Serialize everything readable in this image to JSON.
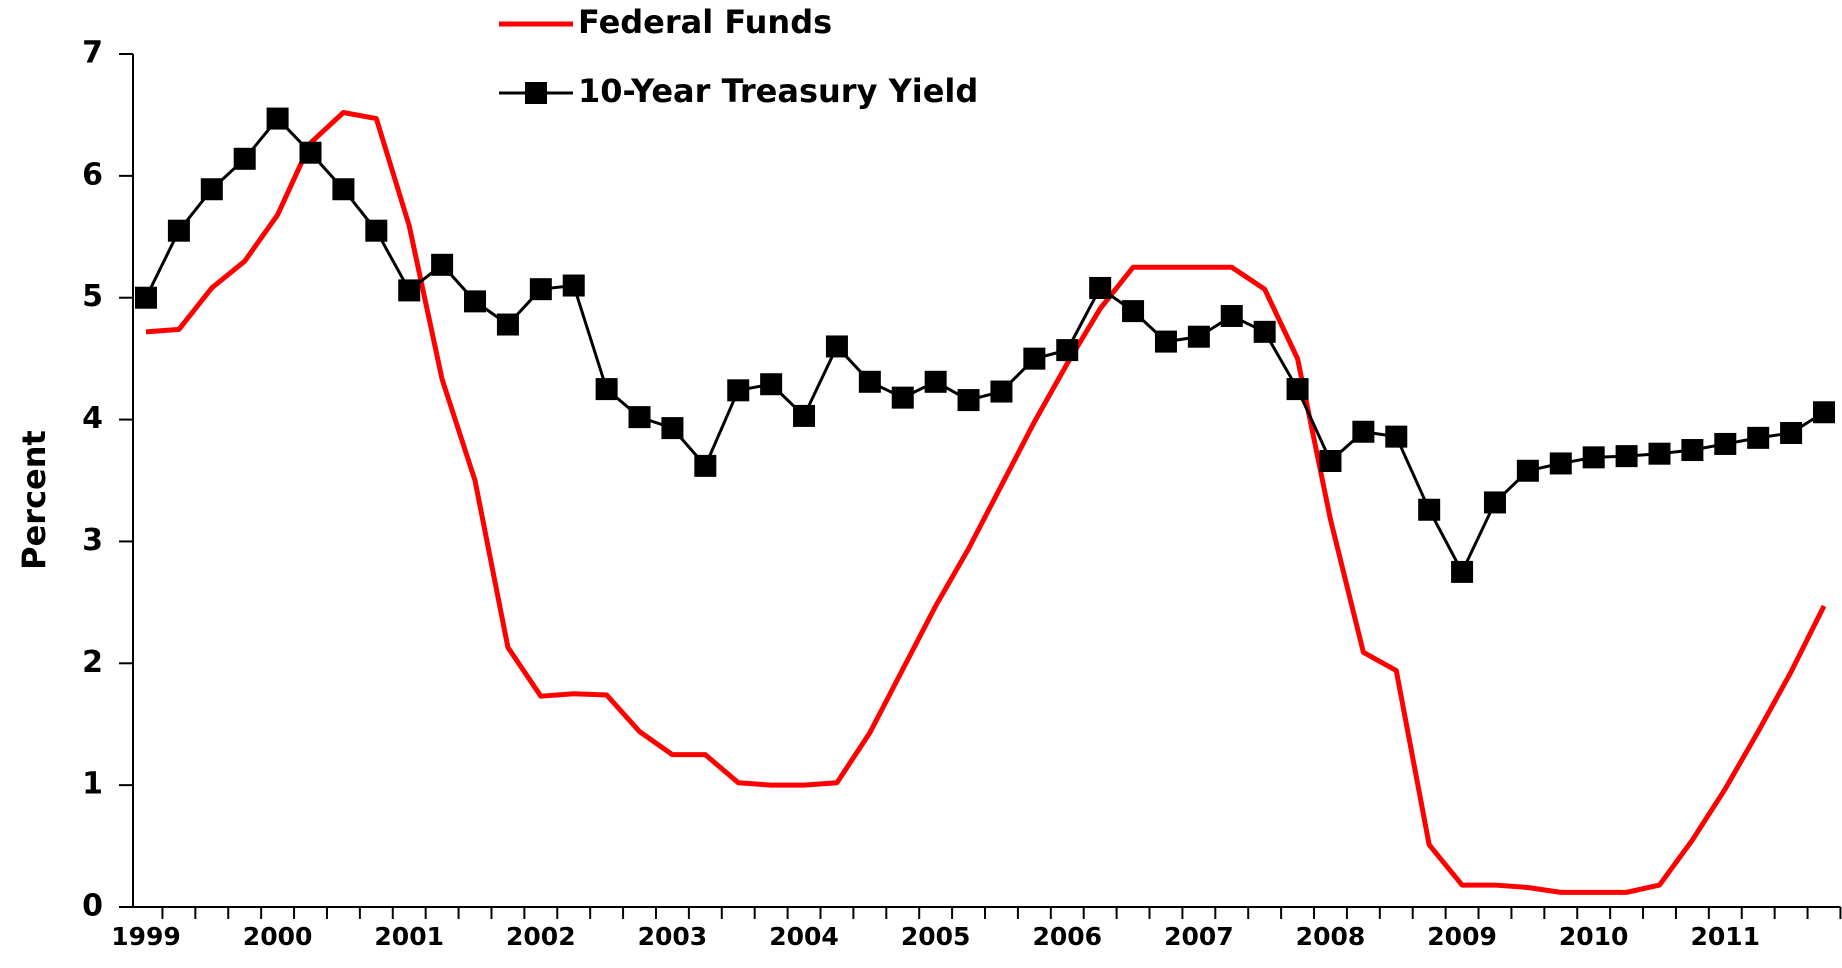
{
  "chart_data": {
    "type": "line",
    "ylabel": "Percent",
    "categories": [
      "1999",
      null,
      null,
      null,
      "2000",
      null,
      null,
      null,
      "2001",
      null,
      null,
      null,
      "2002",
      null,
      null,
      null,
      "2003",
      null,
      null,
      null,
      "2004",
      null,
      null,
      null,
      "2005",
      null,
      null,
      null,
      "2006",
      null,
      null,
      null,
      "2007",
      null,
      null,
      null,
      "2008",
      null,
      null,
      null,
      "2009",
      null,
      null,
      null,
      "2010",
      null,
      null,
      null,
      "2011",
      null,
      null,
      null
    ],
    "series": [
      {
        "name": "Federal Funds",
        "color": "#ff0000",
        "marker": "none",
        "values": [
          4.72,
          4.74,
          5.08,
          5.3,
          5.68,
          6.27,
          6.52,
          6.47,
          5.59,
          4.33,
          3.5,
          2.13,
          1.73,
          1.75,
          1.74,
          1.44,
          1.25,
          1.25,
          1.02,
          1.0,
          1.0,
          1.02,
          1.43,
          1.95,
          2.47,
          2.94,
          3.46,
          3.98,
          4.46,
          4.91,
          5.25,
          5.25,
          5.25,
          5.25,
          5.07,
          4.5,
          3.18,
          2.09,
          1.94,
          0.51,
          0.18,
          0.18,
          0.16,
          0.12,
          0.12,
          0.12,
          0.18,
          0.55,
          0.97,
          1.44,
          1.93,
          2.47
        ]
      },
      {
        "name": "10-Year Treasury Yield",
        "color": "#000000",
        "marker": "square",
        "values": [
          5.0,
          5.55,
          5.89,
          6.14,
          6.47,
          6.19,
          5.89,
          5.55,
          5.06,
          5.27,
          4.97,
          4.78,
          5.07,
          5.1,
          4.25,
          4.02,
          3.93,
          3.62,
          4.24,
          4.29,
          4.03,
          4.6,
          4.31,
          4.18,
          4.31,
          4.16,
          4.23,
          4.5,
          4.57,
          5.08,
          4.89,
          4.64,
          4.68,
          4.85,
          4.72,
          4.25,
          3.66,
          3.9,
          3.86,
          3.26,
          2.75,
          3.32,
          3.58,
          3.64,
          3.69,
          3.7,
          3.72,
          3.75,
          3.8,
          3.85,
          3.89,
          4.06
        ]
      }
    ],
    "ylim": [
      0,
      7
    ],
    "yticks": [
      0,
      1,
      2,
      3,
      4,
      5,
      6,
      7
    ],
    "grid": false
  }
}
